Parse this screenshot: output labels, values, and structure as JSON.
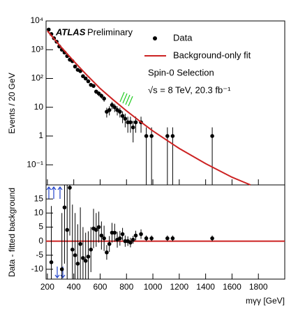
{
  "chart_data": {
    "type": "scatter",
    "atlas": "ATLAS",
    "preliminary": "Preliminary",
    "selection": "Spin-0 Selection",
    "energy": "√s = 8 TeV, 20.3 fb⁻¹",
    "ylabel": "Events / 20 GeV",
    "ylabel2": "Data - fitted background",
    "xlabel": "mγγ [GeV]",
    "xlim": [
      190,
      2000
    ],
    "xticks": [
      200,
      400,
      600,
      800,
      1000,
      1200,
      1400,
      1600,
      1800
    ],
    "ylim": [
      0.02,
      10000
    ],
    "log_y": true,
    "yticks": [
      {
        "value": 0.1,
        "label": "10⁻¹"
      },
      1,
      10,
      {
        "value": 100,
        "label": "10²"
      },
      {
        "value": 1000,
        "label": "10³"
      },
      {
        "value": 10000,
        "label": "10⁴"
      }
    ],
    "y2lim": [
      -13.5,
      20
    ],
    "y2ticks": [
      -10,
      -5,
      0,
      5,
      10,
      15
    ],
    "series": [
      {
        "name": "Data",
        "color": "#000000",
        "x": [
          210,
          230,
          250,
          270,
          290,
          310,
          330,
          350,
          370,
          390,
          410,
          430,
          450,
          470,
          490,
          510,
          530,
          550,
          570,
          590,
          610,
          630,
          650,
          670,
          690,
          710,
          730,
          750,
          770,
          790,
          810,
          830,
          850,
          870,
          910,
          950,
          990,
          1110,
          1150,
          1450
        ],
        "values": [
          5000,
          3500,
          2500,
          1900,
          1300,
          1000,
          800,
          600,
          450,
          400,
          260,
          200,
          180,
          120,
          100,
          80,
          60,
          55,
          35,
          30,
          25,
          20,
          7,
          8,
          12,
          10,
          8,
          7,
          5,
          4,
          3,
          3,
          2,
          3,
          3,
          1,
          1,
          1,
          1,
          1
        ],
        "errors": [
          71,
          59,
          50,
          44,
          36,
          32,
          28,
          24,
          21,
          20,
          16,
          14,
          13,
          11,
          10,
          9,
          8,
          7,
          6,
          5.5,
          5,
          4.5,
          2.6,
          2.8,
          3.5,
          3.2,
          2.8,
          2.6,
          2.2,
          2,
          1.7,
          1.7,
          1.4,
          1.7,
          1.7,
          1,
          1,
          1,
          1,
          1
        ]
      },
      {
        "name": "Background-only fit",
        "color": "#cc2222",
        "x": [
          200,
          300,
          400,
          500,
          600,
          700,
          800,
          900,
          1000,
          1200,
          1400,
          1600,
          1740
        ],
        "values": [
          4500,
          1300,
          400,
          130,
          45,
          18,
          7.5,
          3.3,
          1.5,
          0.37,
          0.11,
          0.037,
          0.02
        ]
      }
    ],
    "residuals": {
      "color": "#000000",
      "x": [
        210,
        230,
        250,
        270,
        290,
        310,
        330,
        350,
        370,
        390,
        410,
        430,
        450,
        470,
        490,
        510,
        530,
        550,
        570,
        590,
        610,
        630,
        650,
        670,
        690,
        710,
        730,
        750,
        770,
        790,
        810,
        830,
        850,
        870,
        910,
        950,
        990,
        1110,
        1150,
        1450
      ],
      "values": [
        null,
        -7.5,
        null,
        null,
        null,
        -10,
        12,
        4,
        19,
        -3,
        -5,
        -8,
        -1,
        -6,
        -7,
        -5.5,
        -3,
        4.5,
        4,
        5,
        2,
        1,
        -4,
        -1,
        3,
        3,
        0.5,
        1,
        2.5,
        0,
        0,
        -0.5,
        0.5,
        2,
        2.5,
        1,
        1,
        1,
        1,
        1
      ],
      "errors": [
        20,
        20,
        20,
        20,
        20,
        20,
        20,
        18,
        17,
        16,
        15,
        14,
        13,
        11,
        10,
        9,
        8,
        7,
        6,
        5.5,
        5,
        4.5,
        2.6,
        2.8,
        3.5,
        3.2,
        2.8,
        2.6,
        2.2,
        2,
        1.7,
        1.7,
        1.4,
        1.7,
        1.7,
        1,
        1,
        1,
        1,
        1
      ]
    }
  }
}
